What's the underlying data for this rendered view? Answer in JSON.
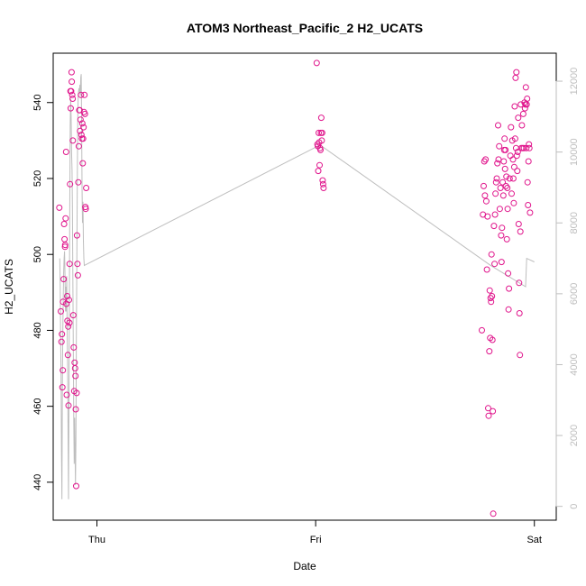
{
  "chart_data": {
    "type": "scatter",
    "title": "ATOM3 Northeast_Pacific_2 H2_UCATS",
    "xlabel": "Date",
    "ylabel": "H2_UCATS",
    "x_ticks": [
      {
        "label": "Thu",
        "value": 0
      },
      {
        "label": "Fri",
        "value": 1
      },
      {
        "label": "Sat",
        "value": 2
      }
    ],
    "xlim": [
      -0.2,
      2.1
    ],
    "ylim": [
      430,
      553
    ],
    "y_ticks": [
      440,
      460,
      480,
      500,
      520,
      540
    ],
    "y2_ticks": [
      0,
      2000,
      4000,
      6000,
      8000,
      10000,
      12000
    ],
    "y2lim": [
      -390,
      12790
    ],
    "grid": false,
    "colors": {
      "points": "#e0158c",
      "line": "#bebebe",
      "axis": "#000000",
      "axis2": "#bebebe"
    },
    "series": [
      {
        "marker": "circle-open",
        "color": "#e0158c",
        "points": [
          [
            -0.172,
            512.3
          ],
          [
            -0.165,
            485
          ],
          [
            -0.162,
            477
          ],
          [
            -0.16,
            479
          ],
          [
            -0.158,
            465
          ],
          [
            -0.156,
            469.5
          ],
          [
            -0.155,
            487.5
          ],
          [
            -0.152,
            493.5
          ],
          [
            -0.15,
            508
          ],
          [
            -0.148,
            504
          ],
          [
            -0.146,
            502
          ],
          [
            -0.145,
            502.5
          ],
          [
            -0.143,
            509.5
          ],
          [
            -0.141,
            527
          ],
          [
            -0.14,
            487
          ],
          [
            -0.138,
            463
          ],
          [
            -0.136,
            489
          ],
          [
            -0.135,
            482.5
          ],
          [
            -0.133,
            473.5
          ],
          [
            -0.131,
            481
          ],
          [
            -0.13,
            460.2
          ],
          [
            -0.128,
            488
          ],
          [
            -0.126,
            482
          ],
          [
            -0.125,
            497.5
          ],
          [
            -0.123,
            518.5
          ],
          [
            -0.121,
            543
          ],
          [
            -0.12,
            538.5
          ],
          [
            -0.118,
            543
          ],
          [
            -0.116,
            548
          ],
          [
            -0.115,
            545.5
          ],
          [
            -0.113,
            542
          ],
          [
            -0.111,
            541
          ],
          [
            -0.11,
            530
          ],
          [
            -0.108,
            484
          ],
          [
            -0.106,
            475.5
          ],
          [
            -0.104,
            464
          ],
          [
            -0.102,
            471.5
          ],
          [
            -0.1,
            470
          ],
          [
            -0.098,
            468
          ],
          [
            -0.097,
            459.2
          ],
          [
            -0.095,
            439
          ],
          [
            -0.093,
            463.5
          ],
          [
            -0.091,
            505
          ],
          [
            -0.089,
            497.5
          ],
          [
            -0.087,
            494.5
          ],
          [
            -0.085,
            519
          ],
          [
            -0.083,
            528.5
          ],
          [
            -0.081,
            538
          ],
          [
            -0.079,
            538
          ],
          [
            -0.077,
            532.5
          ],
          [
            -0.075,
            535.5
          ],
          [
            -0.073,
            542
          ],
          [
            -0.071,
            531.5
          ],
          [
            -0.069,
            530.5
          ],
          [
            -0.067,
            534.5
          ],
          [
            -0.065,
            524
          ],
          [
            -0.063,
            530.5
          ],
          [
            -0.061,
            533.5
          ],
          [
            -0.059,
            537.5
          ],
          [
            -0.057,
            542
          ],
          [
            -0.055,
            537
          ],
          [
            -0.053,
            512.5
          ],
          [
            -0.051,
            512
          ],
          [
            -0.049,
            517.5
          ],
          [
            1.005,
            550.4
          ],
          [
            1.008,
            529
          ],
          [
            1.01,
            528.5
          ],
          [
            1.012,
            522
          ],
          [
            1.014,
            532
          ],
          [
            1.016,
            529.5
          ],
          [
            1.018,
            523.5
          ],
          [
            1.02,
            528
          ],
          [
            1.022,
            527.5
          ],
          [
            1.024,
            532
          ],
          [
            1.026,
            536
          ],
          [
            1.028,
            530
          ],
          [
            1.03,
            532
          ],
          [
            1.032,
            519.5
          ],
          [
            1.034,
            518.5
          ],
          [
            1.036,
            517.5
          ],
          [
            1.76,
            480
          ],
          [
            1.765,
            510.5
          ],
          [
            1.768,
            518
          ],
          [
            1.771,
            524.5
          ],
          [
            1.774,
            515.5
          ],
          [
            1.777,
            525
          ],
          [
            1.78,
            514
          ],
          [
            1.783,
            496
          ],
          [
            1.786,
            510
          ],
          [
            1.789,
            459.5
          ],
          [
            1.791,
            457.5
          ],
          [
            1.794,
            474.5
          ],
          [
            1.796,
            490.5
          ],
          [
            1.798,
            478
          ],
          [
            1.8,
            488.5
          ],
          [
            1.802,
            487.5
          ],
          [
            1.804,
            500
          ],
          [
            1.806,
            489
          ],
          [
            1.808,
            477.5
          ],
          [
            1.81,
            458.7
          ],
          [
            1.812,
            431.7
          ],
          [
            1.815,
            507.5
          ],
          [
            1.818,
            497.5
          ],
          [
            1.82,
            510.5
          ],
          [
            1.822,
            516
          ],
          [
            1.825,
            519
          ],
          [
            1.828,
            520
          ],
          [
            1.831,
            524
          ],
          [
            1.834,
            534
          ],
          [
            1.836,
            525
          ],
          [
            1.839,
            528.5
          ],
          [
            1.842,
            512
          ],
          [
            1.845,
            517.5
          ],
          [
            1.848,
            505
          ],
          [
            1.85,
            498
          ],
          [
            1.852,
            507
          ],
          [
            1.855,
            519
          ],
          [
            1.858,
            515.5
          ],
          [
            1.86,
            524.5
          ],
          [
            1.862,
            527.5
          ],
          [
            1.864,
            530.5
          ],
          [
            1.866,
            522.5
          ],
          [
            1.868,
            527.5
          ],
          [
            1.87,
            518
          ],
          [
            1.872,
            520.5
          ],
          [
            1.874,
            504
          ],
          [
            1.876,
            517.5
          ],
          [
            1.878,
            512
          ],
          [
            1.88,
            495
          ],
          [
            1.882,
            485.5
          ],
          [
            1.884,
            491
          ],
          [
            1.887,
            520
          ],
          [
            1.89,
            526
          ],
          [
            1.893,
            533.5
          ],
          [
            1.896,
            516
          ],
          [
            1.899,
            530
          ],
          [
            1.902,
            525
          ],
          [
            1.904,
            520
          ],
          [
            1.906,
            513.5
          ],
          [
            1.908,
            523
          ],
          [
            1.91,
            539
          ],
          [
            1.912,
            530.5
          ],
          [
            1.914,
            546.5
          ],
          [
            1.916,
            528
          ],
          [
            1.918,
            548
          ],
          [
            1.92,
            526
          ],
          [
            1.922,
            522
          ],
          [
            1.924,
            527
          ],
          [
            1.926,
            536
          ],
          [
            1.928,
            508
          ],
          [
            1.93,
            492.5
          ],
          [
            1.932,
            484.5
          ],
          [
            1.934,
            473.5
          ],
          [
            1.936,
            506
          ],
          [
            1.938,
            539.5
          ],
          [
            1.94,
            528
          ],
          [
            1.943,
            534
          ],
          [
            1.946,
            528
          ],
          [
            1.949,
            537
          ],
          [
            1.952,
            528
          ],
          [
            1.955,
            540
          ],
          [
            1.957,
            538.5
          ],
          [
            1.959,
            539.5
          ],
          [
            1.961,
            544
          ],
          [
            1.963,
            528
          ],
          [
            1.965,
            539.5
          ],
          [
            1.967,
            541
          ],
          [
            1.969,
            519
          ],
          [
            1.971,
            513
          ],
          [
            1.973,
            524.5
          ],
          [
            1.975,
            529
          ],
          [
            1.977,
            528
          ],
          [
            1.98,
            511
          ]
        ]
      },
      {
        "type": "line",
        "axis": "right",
        "color": "#bebebe",
        "points": [
          [
            -0.17,
            7000
          ],
          [
            -0.168,
            6200
          ],
          [
            -0.166,
            4800
          ],
          [
            -0.164,
            3800
          ],
          [
            -0.162,
            1500
          ],
          [
            -0.16,
            200
          ],
          [
            -0.158,
            3500
          ],
          [
            -0.156,
            5000
          ],
          [
            -0.154,
            6000
          ],
          [
            -0.152,
            6600
          ],
          [
            -0.15,
            7000
          ],
          [
            -0.148,
            7200
          ],
          [
            -0.146,
            6500
          ],
          [
            -0.144,
            5500
          ],
          [
            -0.142,
            6200
          ],
          [
            -0.14,
            5500
          ],
          [
            -0.138,
            6500
          ],
          [
            -0.136,
            5000
          ],
          [
            -0.134,
            4000
          ],
          [
            -0.132,
            2000
          ],
          [
            -0.13,
            200
          ],
          [
            -0.128,
            3000
          ],
          [
            -0.126,
            6000
          ],
          [
            -0.124,
            8500
          ],
          [
            -0.122,
            10800
          ],
          [
            -0.12,
            11500
          ],
          [
            -0.118,
            11000
          ],
          [
            -0.116,
            10000
          ],
          [
            -0.114,
            9500
          ],
          [
            -0.112,
            8500
          ],
          [
            -0.11,
            6500
          ],
          [
            -0.108,
            4500
          ],
          [
            -0.106,
            2500
          ],
          [
            -0.104,
            1200
          ],
          [
            -0.102,
            2500
          ],
          [
            -0.1,
            1500
          ],
          [
            -0.098,
            600
          ],
          [
            -0.096,
            1800
          ],
          [
            -0.094,
            4800
          ],
          [
            -0.092,
            6800
          ],
          [
            -0.09,
            9000
          ],
          [
            -0.088,
            10800
          ],
          [
            -0.086,
            11600
          ],
          [
            -0.084,
            11700
          ],
          [
            -0.082,
            11800
          ],
          [
            -0.08,
            11700
          ],
          [
            -0.078,
            11900
          ],
          [
            -0.076,
            11600
          ],
          [
            -0.074,
            12100
          ],
          [
            -0.072,
            12200
          ],
          [
            -0.07,
            11000
          ],
          [
            -0.068,
            9000
          ],
          [
            -0.066,
            8000
          ],
          [
            -0.064,
            8600
          ],
          [
            -0.062,
            7500
          ],
          [
            -0.06,
            7000
          ],
          [
            -0.058,
            6800
          ],
          [
            1.02,
            10200
          ],
          [
            1.8,
            6800
          ],
          [
            1.96,
            6200
          ],
          [
            1.965,
            7000
          ],
          [
            2.0,
            6900
          ]
        ]
      }
    ]
  }
}
